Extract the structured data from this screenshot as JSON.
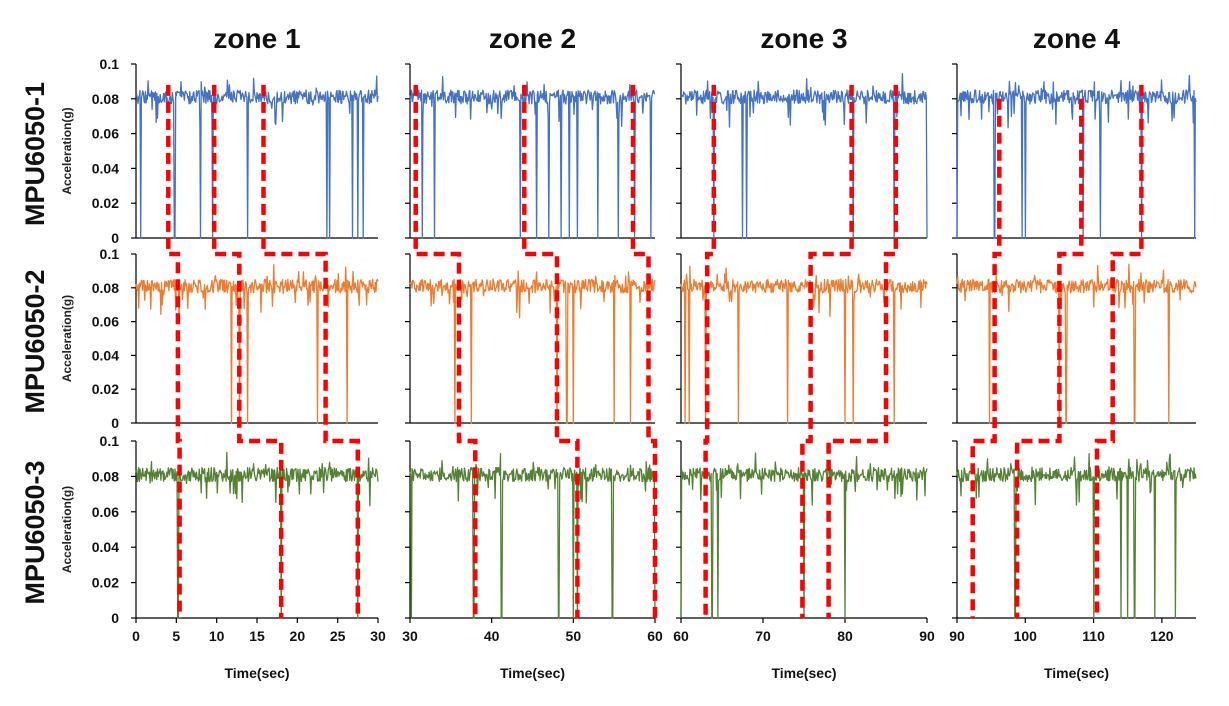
{
  "chart_data": {
    "type": "line",
    "zones": [
      {
        "title": "zone 1",
        "x_range": [
          0,
          30
        ],
        "x_ticks": [
          "0",
          "5",
          "10",
          "15",
          "20",
          "25",
          "30"
        ]
      },
      {
        "title": "zone 2",
        "x_range": [
          30,
          60
        ],
        "x_ticks": [
          "30",
          "40",
          "50",
          "60"
        ]
      },
      {
        "title": "zone 3",
        "x_range": [
          60,
          90
        ],
        "x_ticks": [
          "60",
          "70",
          "80",
          "90"
        ]
      },
      {
        "title": "zone 4",
        "x_range": [
          90,
          125
        ],
        "x_ticks": [
          "90",
          "100",
          "110",
          "120"
        ]
      }
    ],
    "sensors": [
      {
        "name": "MPU6050-1",
        "color": "#4472c4",
        "baseline": 0.081,
        "noise": 0.004,
        "dips": [
          0.6,
          4.8,
          8.0,
          9.5,
          13.8,
          23.7,
          24.0,
          26.8,
          27.5,
          28.2,
          31.5,
          33.0,
          43.5,
          45.5,
          47.0,
          48.5,
          49.5,
          50.5,
          53.0,
          55.5,
          57.5,
          59.5,
          64.0,
          67.5,
          68.0,
          81.0,
          86.0,
          90.0,
          95.5,
          99.5,
          100.0,
          108.5,
          111.0,
          117.0,
          124.8
        ]
      },
      {
        "name": "MPU6050-2",
        "color": "#ed7d31",
        "baseline": 0.081,
        "noise": 0.004,
        "dips": [
          11.8,
          12.8,
          13.8,
          22.5,
          26.2,
          35.5,
          37.5,
          48.0,
          49.2,
          50.0,
          55.0,
          57.0,
          60.5,
          61.0,
          63.0,
          67.0,
          73.0,
          80.0,
          81.0,
          86.0,
          94.8,
          105.0,
          106.0,
          116.0,
          121.0
        ]
      },
      {
        "name": "MPU6050-3",
        "color": "#548235",
        "baseline": 0.081,
        "noise": 0.004,
        "dips": [
          5.2,
          18.0,
          27.5,
          30.2,
          37.8,
          41.2,
          48.2,
          50.0,
          50.5,
          54.8,
          60.0,
          63.8,
          64.5,
          75.0,
          80.0,
          98.5,
          110.0,
          114.0,
          115.0,
          116.0,
          119.0,
          122.0
        ]
      }
    ],
    "y_axis": {
      "label": "Acceleration(g)",
      "ylim": [
        0,
        0.1
      ],
      "ticks": [
        "0",
        "0.02",
        "0.04",
        "0.06",
        "0.08",
        "0.1"
      ]
    },
    "x_axis": {
      "label": "Time(sec)"
    },
    "annotation": {
      "type": "dashed-step-path",
      "color": "#ff0000",
      "paths": [
        {
          "zone": 1,
          "points": [
            [
              4.0,
              0.088,
              0
            ],
            [
              4.0,
              0,
              0
            ],
            [
              4.0,
              0.1,
              1
            ],
            [
              5.2,
              0.1,
              1
            ],
            [
              5.2,
              0,
              1
            ],
            [
              5.2,
              0.1,
              2
            ],
            [
              5.4,
              0.1,
              2
            ],
            [
              5.4,
              0,
              2
            ]
          ]
        },
        {
          "zone": 1,
          "points": [
            [
              9.7,
              0.088,
              0
            ],
            [
              9.7,
              0,
              0
            ],
            [
              9.7,
              0.1,
              1
            ],
            [
              12.8,
              0.1,
              1
            ],
            [
              12.8,
              0,
              1
            ],
            [
              12.8,
              0.1,
              2
            ],
            [
              18.0,
              0.1,
              2
            ],
            [
              18.0,
              0,
              2
            ]
          ]
        },
        {
          "zone": 1,
          "points": [
            [
              15.8,
              0.088,
              0
            ],
            [
              15.8,
              0,
              0
            ],
            [
              15.8,
              0.1,
              1
            ],
            [
              23.5,
              0.1,
              1
            ],
            [
              23.5,
              0,
              1
            ],
            [
              23.5,
              0.1,
              2
            ],
            [
              27.5,
              0.1,
              2
            ],
            [
              27.5,
              0,
              2
            ]
          ]
        },
        {
          "zone": 2,
          "points": [
            [
              30.7,
              0.088,
              0
            ],
            [
              30.7,
              0,
              0
            ],
            [
              30.7,
              0.1,
              1
            ],
            [
              36.0,
              0.1,
              1
            ],
            [
              36.0,
              0,
              1
            ],
            [
              36.0,
              0.1,
              2
            ],
            [
              38.0,
              0.1,
              2
            ],
            [
              38.0,
              0,
              2
            ]
          ]
        },
        {
          "zone": 2,
          "points": [
            [
              44.0,
              0.088,
              0
            ],
            [
              44.0,
              0,
              0
            ],
            [
              44.0,
              0.1,
              1
            ],
            [
              48.0,
              0.1,
              1
            ],
            [
              48.0,
              0,
              1
            ],
            [
              48.0,
              0.1,
              2
            ],
            [
              50.5,
              0.1,
              2
            ],
            [
              50.5,
              0,
              2
            ]
          ]
        },
        {
          "zone": 2,
          "points": [
            [
              57.3,
              0.088,
              0
            ],
            [
              57.3,
              0,
              0
            ],
            [
              57.3,
              0.1,
              1
            ],
            [
              59.2,
              0.1,
              1
            ],
            [
              59.2,
              0,
              1
            ],
            [
              59.2,
              0.1,
              2
            ],
            [
              60.0,
              0.1,
              2
            ],
            [
              60.0,
              0,
              2
            ]
          ]
        },
        {
          "zone": 3,
          "points": [
            [
              64.0,
              0.088,
              0
            ],
            [
              64.0,
              0,
              0
            ],
            [
              64.0,
              0.1,
              1
            ],
            [
              63.2,
              0.1,
              1
            ],
            [
              63.2,
              0,
              1
            ],
            [
              63.2,
              0.1,
              2
            ],
            [
              63.0,
              0.1,
              2
            ],
            [
              63.0,
              0,
              2
            ]
          ]
        },
        {
          "zone": 3,
          "points": [
            [
              80.8,
              0.088,
              0
            ],
            [
              80.8,
              0,
              0
            ],
            [
              80.8,
              0.1,
              1
            ],
            [
              75.8,
              0.1,
              1
            ],
            [
              75.8,
              0,
              1
            ],
            [
              75.8,
              0.1,
              2
            ],
            [
              74.8,
              0.1,
              2
            ],
            [
              74.8,
              0,
              2
            ]
          ]
        },
        {
          "zone": 3,
          "points": [
            [
              86.2,
              0.088,
              0
            ],
            [
              86.2,
              0,
              0
            ],
            [
              86.2,
              0.1,
              1
            ],
            [
              85.0,
              0.1,
              1
            ],
            [
              85.0,
              0,
              1
            ],
            [
              85.0,
              0.1,
              2
            ],
            [
              78.0,
              0.1,
              2
            ],
            [
              78.0,
              0,
              2
            ]
          ]
        },
        {
          "zone": 4,
          "points": [
            [
              96.2,
              0.08,
              0
            ],
            [
              96.2,
              0,
              0
            ],
            [
              96.2,
              0.1,
              1
            ],
            [
              95.5,
              0.1,
              1
            ],
            [
              95.5,
              0,
              1
            ],
            [
              95.5,
              0.1,
              2
            ],
            [
              92.3,
              0.1,
              2
            ],
            [
              92.3,
              0,
              2
            ]
          ]
        },
        {
          "zone": 4,
          "points": [
            [
              108.2,
              0.08,
              0
            ],
            [
              108.2,
              0,
              0
            ],
            [
              108.2,
              0.1,
              1
            ],
            [
              105.0,
              0.1,
              1
            ],
            [
              105.0,
              0,
              1
            ],
            [
              105.0,
              0.1,
              2
            ],
            [
              98.8,
              0.1,
              2
            ],
            [
              98.8,
              0,
              2
            ]
          ]
        },
        {
          "zone": 4,
          "points": [
            [
              117.0,
              0.088,
              0
            ],
            [
              117.0,
              0,
              0
            ],
            [
              117.0,
              0.1,
              1
            ],
            [
              112.8,
              0.1,
              1
            ],
            [
              112.8,
              0,
              1
            ],
            [
              112.8,
              0.1,
              2
            ],
            [
              110.5,
              0.1,
              2
            ],
            [
              110.5,
              0,
              2
            ]
          ]
        }
      ]
    }
  }
}
